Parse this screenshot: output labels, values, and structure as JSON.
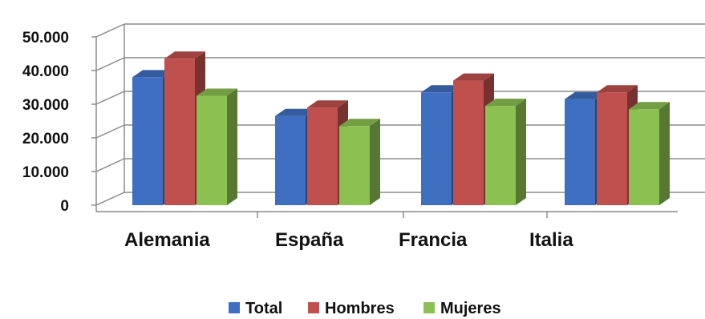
{
  "chart_data": {
    "type": "bar",
    "categories": [
      "Alemania",
      "España",
      "Francia",
      "Italia"
    ],
    "series": [
      {
        "name": "Total",
        "values": [
          38000,
          26500,
          33500,
          31500
        ],
        "color": "#3f6fc1"
      },
      {
        "name": "Hombres",
        "values": [
          43500,
          29000,
          37000,
          33500
        ],
        "color": "#c0504d"
      },
      {
        "name": "Mujeres",
        "values": [
          32500,
          23500,
          29500,
          28500
        ],
        "color": "#8cc152"
      }
    ],
    "yticks": [
      "0",
      "10.000",
      "20.000",
      "30.000",
      "40.000",
      "50.000"
    ],
    "ylim": [
      0,
      50000
    ],
    "grid": true,
    "legend": "bottom",
    "title": "",
    "xlabel": "",
    "ylabel": ""
  }
}
